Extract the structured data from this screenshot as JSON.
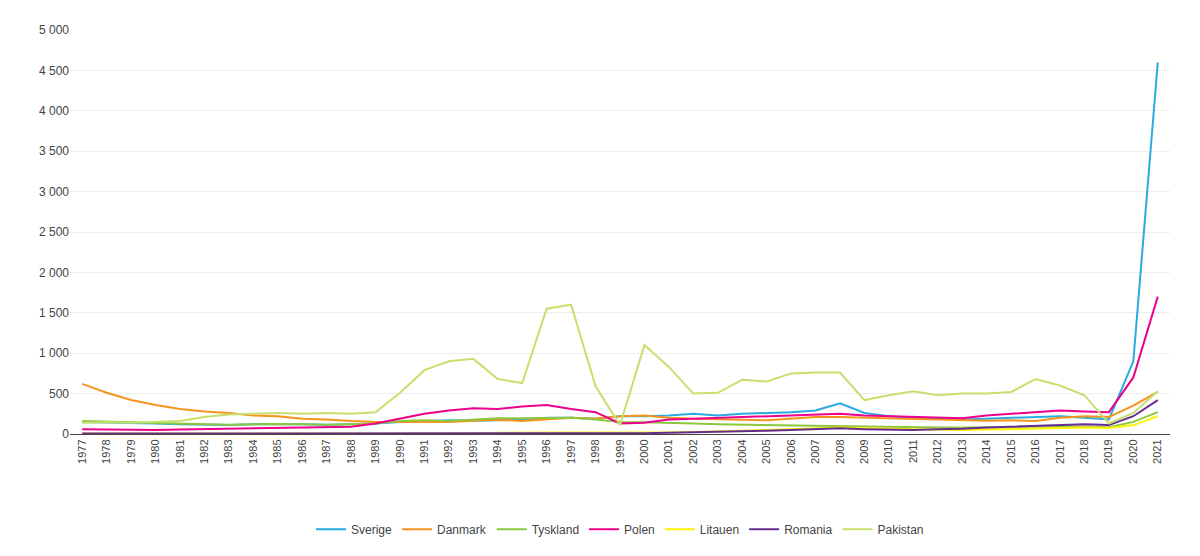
{
  "chart_data": {
    "type": "line",
    "x": [
      1977,
      1978,
      1979,
      1980,
      1981,
      1982,
      1983,
      1984,
      1985,
      1986,
      1987,
      1988,
      1989,
      1990,
      1991,
      1992,
      1993,
      1994,
      1995,
      1996,
      1997,
      1998,
      1999,
      2000,
      2001,
      2002,
      2003,
      2004,
      2005,
      2006,
      2007,
      2008,
      2009,
      2010,
      2011,
      2012,
      2013,
      2014,
      2015,
      2016,
      2017,
      2018,
      2019,
      2020,
      2021
    ],
    "series": [
      {
        "name": "Sverige",
        "color": "#29ABE2",
        "values": [
          150,
          145,
          135,
          130,
          120,
          115,
          110,
          120,
          125,
          120,
          115,
          120,
          130,
          150,
          160,
          170,
          165,
          170,
          175,
          200,
          200,
          190,
          220,
          220,
          230,
          250,
          230,
          250,
          260,
          270,
          290,
          380,
          260,
          220,
          200,
          190,
          180,
          190,
          200,
          210,
          220,
          200,
          180,
          900,
          4600
        ]
      },
      {
        "name": "Danmark",
        "color": "#F7941D",
        "values": [
          620,
          510,
          420,
          360,
          310,
          280,
          260,
          230,
          220,
          190,
          180,
          160,
          150,
          150,
          150,
          150,
          165,
          175,
          160,
          180,
          200,
          190,
          220,
          230,
          200,
          190,
          180,
          175,
          170,
          190,
          210,
          210,
          200,
          195,
          185,
          180,
          175,
          165,
          170,
          160,
          200,
          220,
          210,
          350,
          520
        ]
      },
      {
        "name": "Tyskland",
        "color": "#8DC63F",
        "values": [
          160,
          155,
          145,
          135,
          130,
          120,
          115,
          120,
          125,
          120,
          115,
          120,
          130,
          160,
          170,
          160,
          175,
          195,
          195,
          200,
          200,
          180,
          150,
          145,
          140,
          130,
          120,
          115,
          110,
          105,
          100,
          100,
          90,
          85,
          85,
          80,
          80,
          80,
          85,
          90,
          95,
          90,
          85,
          150,
          270
        ]
      },
      {
        "name": "Polen",
        "color": "#EC008C",
        "values": [
          60,
          55,
          50,
          50,
          55,
          60,
          70,
          75,
          80,
          85,
          85,
          90,
          130,
          190,
          250,
          290,
          320,
          310,
          340,
          360,
          310,
          270,
          130,
          140,
          180,
          190,
          200,
          215,
          225,
          230,
          240,
          250,
          230,
          220,
          210,
          200,
          195,
          230,
          250,
          270,
          290,
          280,
          270,
          700,
          1700
        ]
      },
      {
        "name": "Litauen",
        "color": "#FFF200",
        "values": [
          5,
          5,
          5,
          5,
          5,
          5,
          5,
          5,
          5,
          5,
          5,
          5,
          5,
          5,
          10,
          10,
          10,
          15,
          20,
          20,
          20,
          20,
          15,
          20,
          20,
          25,
          30,
          40,
          50,
          60,
          70,
          80,
          70,
          65,
          60,
          55,
          50,
          55,
          60,
          65,
          70,
          80,
          75,
          110,
          220
        ]
      },
      {
        "name": "Romania",
        "color": "#662D91",
        "values": [
          5,
          5,
          5,
          5,
          5,
          5,
          5,
          5,
          5,
          5,
          5,
          5,
          5,
          5,
          5,
          5,
          5,
          5,
          5,
          5,
          5,
          5,
          10,
          10,
          15,
          20,
          25,
          30,
          40,
          50,
          60,
          70,
          60,
          55,
          50,
          60,
          65,
          80,
          90,
          95,
          110,
          120,
          110,
          220,
          420
        ]
      },
      {
        "name": "Pakistan",
        "color": "#C6E06E",
        "values": [
          140,
          145,
          140,
          150,
          160,
          210,
          240,
          250,
          260,
          250,
          260,
          250,
          270,
          510,
          790,
          900,
          930,
          680,
          630,
          1550,
          1600,
          590,
          110,
          1100,
          830,
          500,
          510,
          670,
          650,
          750,
          760,
          760,
          420,
          480,
          530,
          480,
          500,
          500,
          520,
          680,
          600,
          480,
          130,
          260,
          530
        ]
      }
    ],
    "xlim": [
      1976.5,
      2021.5
    ],
    "xticks": [
      1977,
      1978,
      1979,
      1980,
      1981,
      1982,
      1983,
      1984,
      1985,
      1986,
      1987,
      1988,
      1989,
      1990,
      1991,
      1992,
      1993,
      1994,
      1995,
      1996,
      1997,
      1998,
      1999,
      2000,
      2001,
      2002,
      2003,
      2004,
      2005,
      2006,
      2007,
      2008,
      2009,
      2010,
      2011,
      2012,
      2013,
      2014,
      2015,
      2016,
      2017,
      2018,
      2019,
      2020,
      2021
    ],
    "ylim": [
      0,
      5000
    ],
    "yticks": [
      0,
      500,
      {
        "value": 1000,
        "label": "1 000"
      },
      {
        "value": 1500,
        "label": "1 500"
      },
      {
        "value": 2000,
        "label": "2 000"
      },
      {
        "value": 2500,
        "label": "2 500"
      },
      {
        "value": 3000,
        "label": "3 000"
      },
      {
        "value": 3500,
        "label": "3 500"
      },
      {
        "value": 4000,
        "label": "4 000"
      },
      {
        "value": 4500,
        "label": "4 500"
      },
      {
        "value": 5000,
        "label": "5 000"
      }
    ],
    "grid": true,
    "legend": "bottom"
  }
}
